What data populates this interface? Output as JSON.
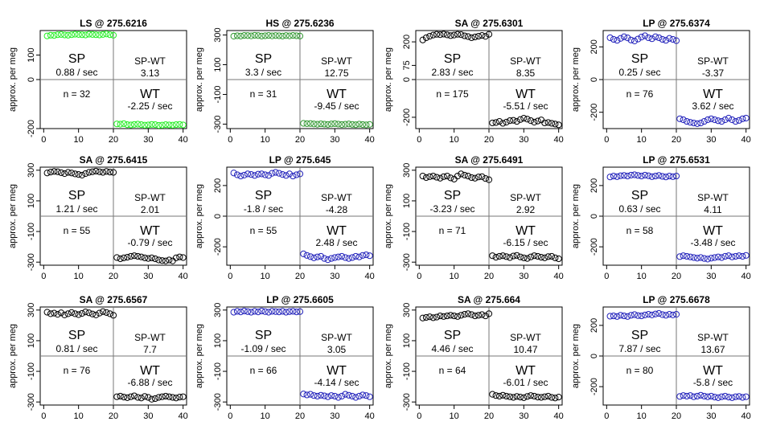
{
  "figure": {
    "ylabel": "approx. per meg"
  },
  "chart_data": [
    {
      "type": "scatter",
      "title": "LS @ 275.6216",
      "color": "#22ee22",
      "ylim": [
        -200,
        200
      ],
      "xlim": [
        0,
        40
      ],
      "yticks": [
        -200,
        0,
        100
      ],
      "xticks": [
        0,
        10,
        20,
        30,
        40
      ],
      "sp_values": [
        178,
        181,
        180,
        183,
        184,
        182,
        181,
        183,
        185,
        184,
        183,
        182,
        185,
        184,
        183,
        182,
        184,
        186,
        183,
        181
      ],
      "wt_values": [
        -181,
        -182,
        -180,
        -184,
        -185,
        -183,
        -182,
        -184,
        -186,
        -185,
        -183,
        -184,
        -187,
        -186,
        -184,
        -185,
        -186,
        -184,
        -183,
        -185
      ],
      "sp_label": "SP",
      "sp_rate": "0.88 / sec",
      "spwt_label": "SP-WT",
      "spwt_value": "3.13",
      "wt_label": "WT",
      "wt_rate": "-2.25 / sec",
      "n_label": "n = 32"
    },
    {
      "type": "scatter",
      "title": "HS @ 275.6236",
      "color": "#339933",
      "ylim": [
        -330,
        330
      ],
      "xlim": [
        0,
        40
      ],
      "yticks": [
        -300,
        -100,
        100,
        300
      ],
      "xticks": [
        0,
        10,
        20,
        30,
        40
      ],
      "sp_values": [
        292,
        295,
        293,
        297,
        296,
        294,
        298,
        296,
        293,
        295,
        297,
        294,
        296,
        295,
        293,
        296,
        294,
        297,
        295,
        293
      ],
      "wt_values": [
        -295,
        -297,
        -296,
        -299,
        -301,
        -298,
        -300,
        -302,
        -299,
        -297,
        -300,
        -303,
        -301,
        -299,
        -302,
        -304,
        -300,
        -303,
        -305,
        -302
      ],
      "sp_label": "SP",
      "sp_rate": "3.3 / sec",
      "spwt_label": "SP-WT",
      "spwt_value": "12.75",
      "wt_label": "WT",
      "wt_rate": "-9.45 / sec",
      "n_label": "n = 31"
    },
    {
      "type": "scatter",
      "title": "SA @ 275.6301",
      "color": "#000000",
      "ylim": [
        -260,
        260
      ],
      "xlim": [
        0,
        40
      ],
      "yticks": [
        -200,
        0,
        75,
        200
      ],
      "xticks": [
        0,
        10,
        20,
        30,
        40
      ],
      "sp_values": [
        210,
        222,
        230,
        236,
        240,
        238,
        241,
        237,
        233,
        236,
        240,
        238,
        232,
        228,
        222,
        226,
        230,
        234,
        229,
        240
      ],
      "wt_values": [
        -230,
        -228,
        -222,
        -232,
        -226,
        -218,
        -216,
        -222,
        -212,
        -205,
        -210,
        -218,
        -226,
        -220,
        -214,
        -230,
        -228,
        -232,
        -236,
        -240
      ],
      "sp_label": "SP",
      "sp_rate": "2.83 / sec",
      "spwt_label": "SP-WT",
      "spwt_value": "8.35",
      "wt_label": "WT",
      "wt_rate": "-5.51 / sec",
      "n_label": "n = 175"
    },
    {
      "type": "scatter",
      "title": "LP @ 275.6374",
      "color": "#2222bb",
      "ylim": [
        -300,
        300
      ],
      "xlim": [
        0,
        40
      ],
      "yticks": [
        -200,
        0,
        200
      ],
      "xticks": [
        0,
        10,
        20,
        30,
        40
      ],
      "sp_values": [
        256,
        246,
        240,
        252,
        262,
        255,
        242,
        236,
        248,
        260,
        268,
        256,
        250,
        262,
        256,
        246,
        240,
        252,
        246,
        238
      ],
      "wt_values": [
        -240,
        -246,
        -256,
        -262,
        -266,
        -270,
        -266,
        -256,
        -246,
        -240,
        -246,
        -252,
        -256,
        -246,
        -236,
        -246,
        -256,
        -250,
        -240,
        -236
      ],
      "sp_label": "SP",
      "sp_rate": "0.25 / sec",
      "spwt_label": "SP-WT",
      "spwt_value": "-3.37",
      "wt_label": "WT",
      "wt_rate": "3.62 / sec",
      "n_label": "n = 76"
    },
    {
      "type": "scatter",
      "title": "SA @ 275.6415",
      "color": "#000000",
      "ylim": [
        -320,
        320
      ],
      "xlim": [
        0,
        40
      ],
      "yticks": [
        -300,
        -100,
        100,
        300
      ],
      "xticks": [
        0,
        10,
        20,
        30,
        40
      ],
      "sp_values": [
        282,
        288,
        292,
        290,
        284,
        278,
        286,
        282,
        276,
        272,
        268,
        278,
        286,
        290,
        294,
        290,
        286,
        292,
        288,
        286
      ],
      "wt_values": [
        -270,
        -278,
        -272,
        -268,
        -262,
        -258,
        -262,
        -266,
        -272,
        -276,
        -272,
        -278,
        -286,
        -290,
        -292,
        -286,
        -292,
        -272,
        -266,
        -270
      ],
      "sp_label": "SP",
      "sp_rate": "1.21 / sec",
      "spwt_label": "SP-WT",
      "spwt_value": "2.01",
      "wt_label": "WT",
      "wt_rate": "-0.79 / sec",
      "n_label": "n = 55"
    },
    {
      "type": "scatter",
      "title": "LP @ 275.645",
      "color": "#2222bb",
      "ylim": [
        -320,
        320
      ],
      "xlim": [
        0,
        40
      ],
      "yticks": [
        -200,
        0,
        200
      ],
      "xticks": [
        0,
        10,
        20,
        30,
        40
      ],
      "sp_values": [
        282,
        270,
        262,
        268,
        276,
        272,
        266,
        274,
        276,
        270,
        266,
        280,
        286,
        280,
        272,
        266,
        276,
        262,
        270,
        276
      ],
      "wt_values": [
        -246,
        -256,
        -264,
        -272,
        -266,
        -262,
        -276,
        -284,
        -276,
        -270,
        -266,
        -262,
        -270,
        -276,
        -270,
        -262,
        -266,
        -256,
        -252,
        -258
      ],
      "sp_label": "SP",
      "sp_rate": "-1.8 / sec",
      "spwt_label": "SP-WT",
      "spwt_value": "-4.28",
      "wt_label": "WT",
      "wt_rate": "2.48 / sec",
      "n_label": "n = 55"
    },
    {
      "type": "scatter",
      "title": "SA @ 275.6491",
      "color": "#000000",
      "ylim": [
        -320,
        320
      ],
      "xlim": [
        0,
        40
      ],
      "yticks": [
        -300,
        -100,
        100,
        300
      ],
      "xticks": [
        0,
        10,
        20,
        30,
        40
      ],
      "sp_values": [
        262,
        252,
        258,
        262,
        254,
        248,
        258,
        262,
        250,
        242,
        262,
        276,
        268,
        262,
        252,
        248,
        256,
        258,
        246,
        238
      ],
      "wt_values": [
        -258,
        -268,
        -262,
        -258,
        -264,
        -270,
        -260,
        -256,
        -266,
        -272,
        -276,
        -266,
        -258,
        -262,
        -268,
        -272,
        -264,
        -262,
        -272,
        -278
      ],
      "sp_label": "SP",
      "sp_rate": "-3.23 / sec",
      "spwt_label": "SP-WT",
      "spwt_value": "2.92",
      "wt_label": "WT",
      "wt_rate": "-6.15 / sec",
      "n_label": "n = 71"
    },
    {
      "type": "scatter",
      "title": "LP @ 275.6531",
      "color": "#2222bb",
      "ylim": [
        -320,
        320
      ],
      "xlim": [
        0,
        40
      ],
      "yticks": [
        -200,
        0,
        200
      ],
      "xticks": [
        0,
        10,
        20,
        30,
        40
      ],
      "sp_values": [
        256,
        262,
        258,
        264,
        266,
        262,
        268,
        270,
        266,
        262,
        268,
        264,
        258,
        262,
        266,
        260,
        256,
        262,
        258,
        262
      ],
      "wt_values": [
        -264,
        -258,
        -262,
        -266,
        -270,
        -274,
        -270,
        -276,
        -280,
        -274,
        -270,
        -266,
        -270,
        -262,
        -258,
        -266,
        -262,
        -258,
        -262,
        -256
      ],
      "sp_label": "SP",
      "sp_rate": "0.63 / sec",
      "spwt_label": "SP-WT",
      "spwt_value": "4.11",
      "wt_label": "WT",
      "wt_rate": "-3.48 / sec",
      "n_label": "n = 58"
    },
    {
      "type": "scatter",
      "title": "SA @ 275.6567",
      "color": "#000000",
      "ylim": [
        -320,
        320
      ],
      "xlim": [
        0,
        40
      ],
      "yticks": [
        -300,
        -100,
        100,
        300
      ],
      "xticks": [
        0,
        10,
        20,
        30,
        40
      ],
      "sp_values": [
        286,
        276,
        280,
        272,
        282,
        268,
        276,
        284,
        276,
        270,
        278,
        288,
        282,
        274,
        268,
        280,
        290,
        284,
        276,
        266
      ],
      "wt_values": [
        -266,
        -262,
        -268,
        -272,
        -266,
        -260,
        -270,
        -274,
        -264,
        -270,
        -282,
        -278,
        -270,
        -266,
        -262,
        -266,
        -270,
        -274,
        -268,
        -266
      ],
      "sp_label": "SP",
      "sp_rate": "0.81 / sec",
      "spwt_label": "SP-WT",
      "spwt_value": "7.7",
      "wt_label": "WT",
      "wt_rate": "-6.88 / sec",
      "n_label": "n = 76"
    },
    {
      "type": "scatter",
      "title": "LP @ 275.6605",
      "color": "#2222bb",
      "ylim": [
        -320,
        320
      ],
      "xlim": [
        0,
        40
      ],
      "yticks": [
        -300,
        -100,
        100,
        300
      ],
      "xticks": [
        0,
        10,
        20,
        30,
        40
      ],
      "sp_values": [
        286,
        292,
        288,
        294,
        290,
        286,
        292,
        288,
        294,
        290,
        286,
        292,
        290,
        288,
        292,
        286,
        290,
        292,
        288,
        290
      ],
      "wt_values": [
        -248,
        -254,
        -250,
        -258,
        -262,
        -256,
        -260,
        -266,
        -258,
        -262,
        -270,
        -262,
        -250,
        -256,
        -262,
        -270,
        -262,
        -254,
        -258,
        -266
      ],
      "sp_label": "SP",
      "sp_rate": "-1.09 / sec",
      "spwt_label": "SP-WT",
      "spwt_value": "3.05",
      "wt_label": "WT",
      "wt_rate": "-4.14 / sec",
      "n_label": "n = 66"
    },
    {
      "type": "scatter",
      "title": "SA @ 275.664",
      "color": "#000000",
      "ylim": [
        -320,
        320
      ],
      "xlim": [
        0,
        40
      ],
      "yticks": [
        -300,
        -100,
        100,
        300
      ],
      "xticks": [
        0,
        10,
        20,
        30,
        40
      ],
      "sp_values": [
        248,
        252,
        256,
        250,
        254,
        262,
        258,
        262,
        266,
        262,
        258,
        266,
        272,
        276,
        270,
        262,
        266,
        270,
        262,
        276
      ],
      "wt_values": [
        -250,
        -258,
        -262,
        -256,
        -262,
        -266,
        -270,
        -264,
        -268,
        -272,
        -264,
        -258,
        -262,
        -268,
        -270,
        -266,
        -262,
        -270,
        -274,
        -268
      ],
      "sp_label": "SP",
      "sp_rate": "4.46 / sec",
      "spwt_label": "SP-WT",
      "spwt_value": "10.47",
      "wt_label": "WT",
      "wt_rate": "-6.01 / sec",
      "n_label": "n = 64"
    },
    {
      "type": "scatter",
      "title": "LP @ 275.6678",
      "color": "#2222bb",
      "ylim": [
        -320,
        320
      ],
      "xlim": [
        0,
        40
      ],
      "yticks": [
        -200,
        0,
        200
      ],
      "xticks": [
        0,
        10,
        20,
        30,
        40
      ],
      "sp_values": [
        260,
        262,
        258,
        266,
        262,
        258,
        266,
        270,
        264,
        262,
        268,
        272,
        268,
        274,
        278,
        270,
        266,
        272,
        268,
        272
      ],
      "wt_values": [
        -264,
        -258,
        -262,
        -258,
        -266,
        -262,
        -256,
        -262,
        -266,
        -262,
        -268,
        -272,
        -266,
        -262,
        -268,
        -272,
        -266,
        -264,
        -270,
        -266
      ],
      "sp_label": "SP",
      "sp_rate": "7.87 / sec",
      "spwt_label": "SP-WT",
      "spwt_value": "13.67",
      "wt_label": "WT",
      "wt_rate": "-5.8 / sec",
      "n_label": "n = 80"
    }
  ]
}
